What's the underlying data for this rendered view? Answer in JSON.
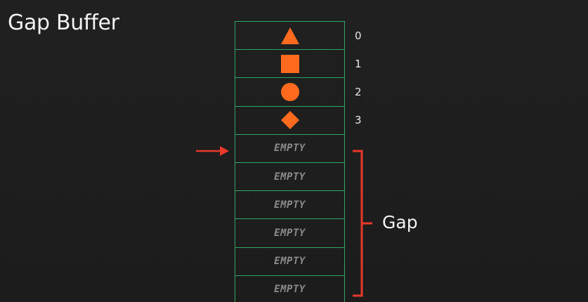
{
  "title": "Gap Buffer",
  "colors": {
    "shape": "#ff6a1f",
    "cell_border": "#2fa566",
    "marker": "#e8382a",
    "empty_text": "#8b8b8b"
  },
  "buffer": {
    "cells": [
      {
        "kind": "shape",
        "shape": "triangle-icon",
        "index": "0"
      },
      {
        "kind": "shape",
        "shape": "square-icon",
        "index": "1"
      },
      {
        "kind": "shape",
        "shape": "circle-icon",
        "index": "2"
      },
      {
        "kind": "shape",
        "shape": "diamond-icon",
        "index": "3"
      },
      {
        "kind": "empty",
        "label": "EMPTY"
      },
      {
        "kind": "empty",
        "label": "EMPTY"
      },
      {
        "kind": "empty",
        "label": "EMPTY"
      },
      {
        "kind": "empty",
        "label": "EMPTY"
      },
      {
        "kind": "empty",
        "label": "EMPTY"
      },
      {
        "kind": "empty",
        "label": "EMPTY"
      }
    ]
  },
  "cursor_icon": "arrow-right-icon",
  "gap_label": "Gap"
}
